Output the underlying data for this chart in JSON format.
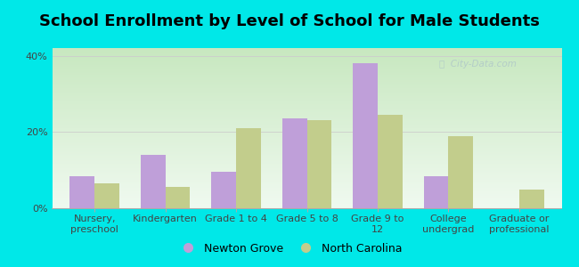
{
  "title": "School Enrollment by Level of School for Male Students",
  "categories": [
    "Nursery,\npreschool",
    "Kindergarten",
    "Grade 1 to 4",
    "Grade 5 to 8",
    "Grade 9 to\n12",
    "College\nundergrad",
    "Graduate or\nprofessional"
  ],
  "newton_grove": [
    8.5,
    14.0,
    9.5,
    23.5,
    38.0,
    8.5,
    0.0
  ],
  "north_carolina": [
    6.5,
    5.5,
    21.0,
    23.0,
    24.5,
    19.0,
    5.0
  ],
  "newton_grove_color": "#bf9fd9",
  "north_carolina_color": "#c2cd8c",
  "background_outer": "#00e8e8",
  "ylim": [
    0,
    42
  ],
  "yticks": [
    0,
    20,
    40
  ],
  "ytick_labels": [
    "0%",
    "20%",
    "40%"
  ],
  "legend_label_1": "Newton Grove",
  "legend_label_2": "North Carolina",
  "bar_width": 0.35,
  "title_fontsize": 13,
  "tick_fontsize": 8,
  "legend_fontsize": 9
}
